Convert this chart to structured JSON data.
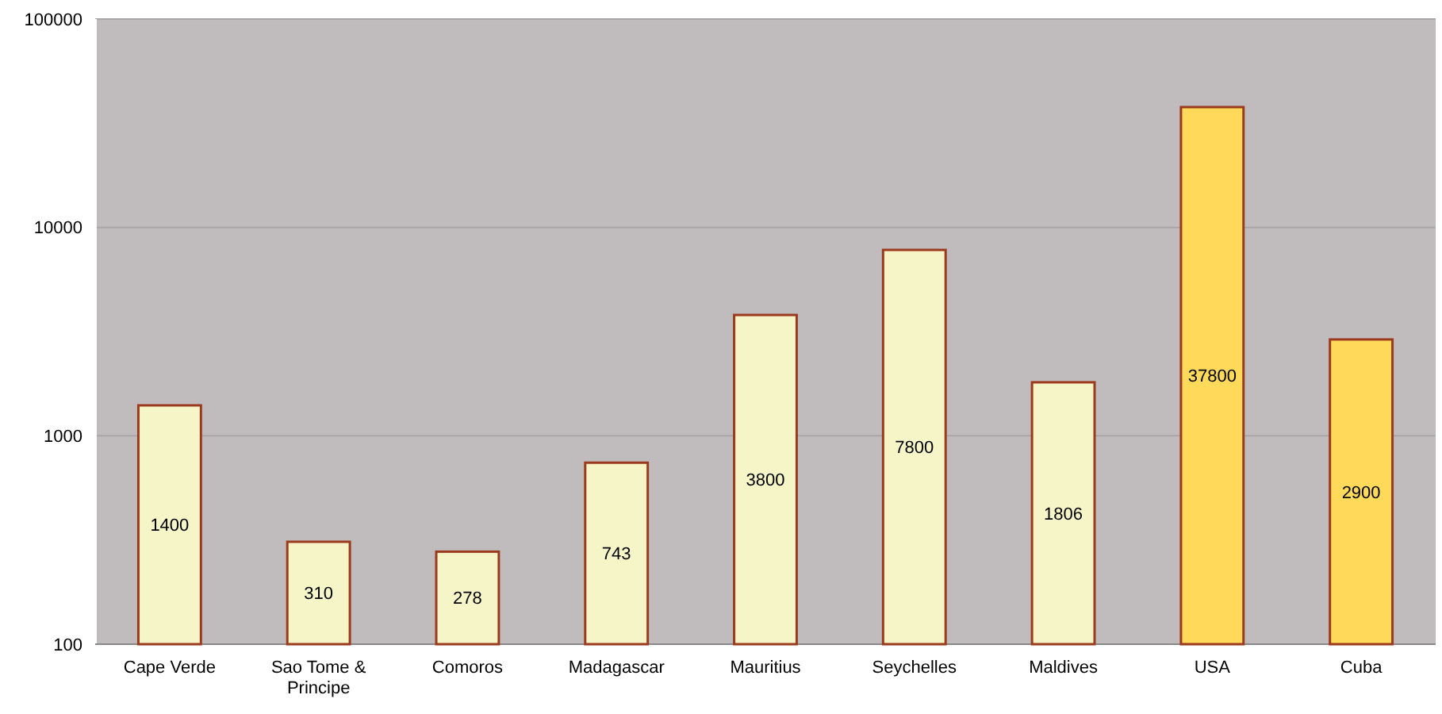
{
  "chart_data": {
    "type": "bar",
    "categories": [
      "Cape Verde",
      "Sao Tome & Principe",
      "Comoros",
      "Madagascar",
      "Mauritius",
      "Seychelles",
      "Maldives",
      "USA",
      "Cuba"
    ],
    "values": [
      1400,
      310,
      278,
      743,
      3800,
      7800,
      1806,
      37800,
      2900
    ],
    "colors": [
      "#f5f5c8",
      "#f5f5c8",
      "#f5f5c8",
      "#f5f5c8",
      "#f5f5c8",
      "#f5f5c8",
      "#f5f5c8",
      "#ffd95a",
      "#ffd95a"
    ],
    "log": true,
    "ylim": [
      100,
      100000
    ],
    "yticks": [
      100,
      1000,
      10000,
      100000
    ],
    "grid": "y",
    "data_labels": true
  }
}
